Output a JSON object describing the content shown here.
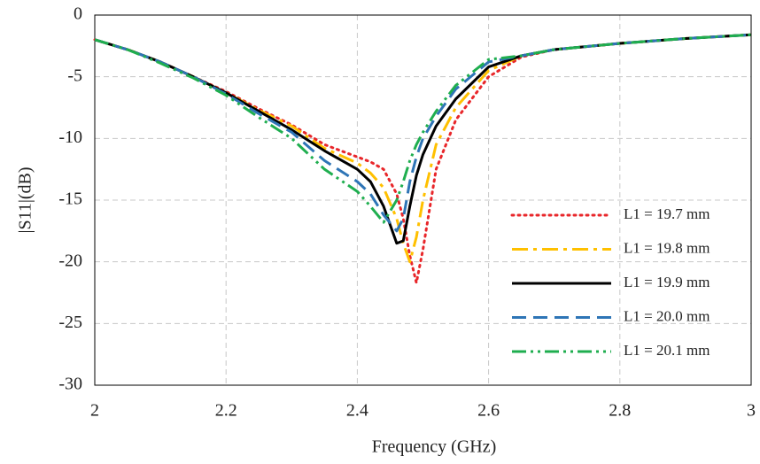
{
  "chart_data": {
    "type": "line",
    "xlabel": "Frequency (GHz)",
    "ylabel": "|S11|(dB)",
    "x": [
      2,
      2.05,
      2.1,
      2.15,
      2.2,
      2.25,
      2.3,
      2.35,
      2.4,
      2.42,
      2.44,
      2.46,
      2.47,
      2.48,
      2.49,
      2.5,
      2.52,
      2.55,
      2.6,
      2.65,
      2.7,
      2.8,
      2.9,
      3
    ],
    "series": [
      {
        "name": "L1 = 19.7  mm",
        "color": "#e8262a",
        "values": [
          -2,
          -2.8,
          -3.8,
          -5,
          -6.2,
          -7.6,
          -8.9,
          -10.5,
          -11.5,
          -11.9,
          -12.5,
          -14.5,
          -16.5,
          -19.5,
          -21.7,
          -19,
          -12.5,
          -8.5,
          -5,
          -3.4,
          -2.8,
          -2.3,
          -1.9,
          -1.6
        ]
      },
      {
        "name": "L1 = 19.8  mm",
        "color": "#ffc000",
        "values": [
          -2,
          -2.8,
          -3.8,
          -5,
          -6.3,
          -7.7,
          -9,
          -10.8,
          -12,
          -12.8,
          -14,
          -16.5,
          -18.5,
          -20,
          -18,
          -15,
          -10.5,
          -7.5,
          -4.5,
          -3.3,
          -2.8,
          -2.3,
          -1.9,
          -1.6
        ]
      },
      {
        "name": "L1 = 19.9  mm",
        "color": "#000000",
        "values": [
          -2,
          -2.8,
          -3.8,
          -5,
          -6.3,
          -7.8,
          -9.3,
          -11,
          -12.5,
          -13.5,
          -15.5,
          -18.5,
          -18.3,
          -15.5,
          -13,
          -11.3,
          -9,
          -6.8,
          -4.2,
          -3.3,
          -2.8,
          -2.3,
          -1.9,
          -1.6
        ]
      },
      {
        "name": "L1 =  20.0 mm",
        "color": "#2e75b6",
        "values": [
          -2,
          -2.8,
          -3.8,
          -5,
          -6.4,
          -8,
          -9.5,
          -11.8,
          -13.5,
          -14.5,
          -16.2,
          -17.5,
          -16.5,
          -13.5,
          -11.5,
          -10,
          -8.2,
          -6,
          -3.8,
          -3.3,
          -2.8,
          -2.3,
          -1.9,
          -1.6
        ]
      },
      {
        "name": "L1 =  20.1 mm",
        "color": "#1fae4f",
        "values": [
          -2,
          -2.8,
          -3.9,
          -5.1,
          -6.5,
          -8.3,
          -10,
          -12.5,
          -14.3,
          -15.5,
          -16.8,
          -15,
          -13.5,
          -11.8,
          -10.5,
          -9.5,
          -7.8,
          -5.7,
          -3.6,
          -3.3,
          -2.8,
          -2.3,
          -1.9,
          -1.6
        ]
      }
    ],
    "xlim": [
      2,
      3
    ],
    "xticks": [
      2,
      2.2,
      2.4,
      2.6,
      2.8,
      3
    ],
    "ylim": [
      -30,
      0
    ],
    "yticks": [
      0,
      -5,
      -10,
      -15,
      -20,
      -25,
      -30
    ],
    "grid": true
  }
}
